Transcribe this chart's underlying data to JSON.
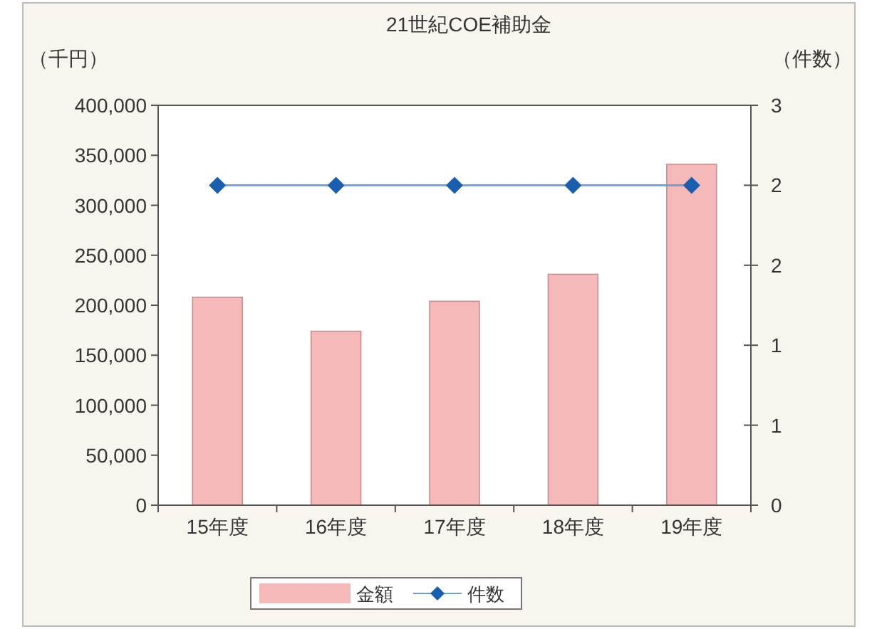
{
  "chart_data": {
    "type": "bar",
    "title": "21世紀COE補助金",
    "ylabel": "（千円）",
    "y2label": "（件数）",
    "categories": [
      "15年度",
      "16年度",
      "17年度",
      "18年度",
      "19年度"
    ],
    "series": [
      {
        "name": "金額",
        "color": "#f5b9b9",
        "values": [
          208000,
          174000,
          204000,
          231000,
          341000
        ]
      },
      {
        "name": "件数",
        "type": "line",
        "axis": "y2",
        "color": "#1a5fae",
        "marker": "diamond",
        "values": [
          2.4,
          2.4,
          2.4,
          2.4,
          2.4
        ]
      }
    ],
    "ylim": [
      0,
      400000
    ],
    "yticks": [
      0,
      {
        "value": 50000,
        "label": "50,000"
      },
      {
        "value": 100000,
        "label": "100,000"
      },
      {
        "value": 150000,
        "label": "150,000"
      },
      {
        "value": 200000,
        "label": "200,000"
      },
      {
        "value": 250000,
        "label": "250,000"
      },
      {
        "value": 300000,
        "label": "300,000"
      },
      {
        "value": 350000,
        "label": "350,000"
      },
      {
        "value": 400000,
        "label": "400,000"
      }
    ],
    "y2lim": [
      0,
      3
    ],
    "y2ticks": [
      0,
      {
        "value": 0.6,
        "label": "1"
      },
      {
        "value": 1.2,
        "label": "1"
      },
      {
        "value": 1.8,
        "label": "2"
      },
      {
        "value": 2.4,
        "label": "2"
      },
      3
    ],
    "legend": "bottom",
    "grid": false
  }
}
